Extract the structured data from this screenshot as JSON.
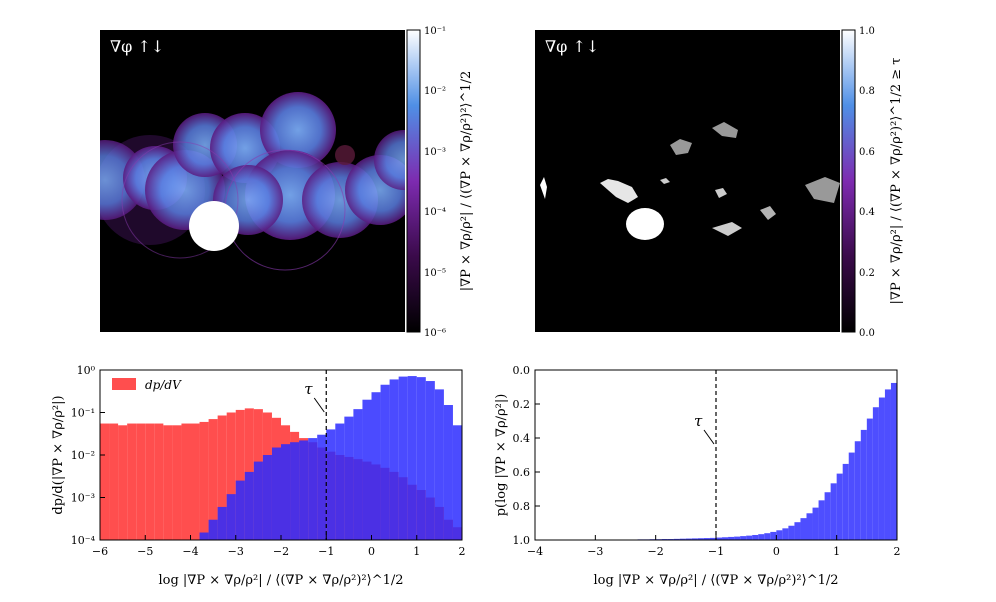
{
  "panels": {
    "top_left": {
      "label": "∇φ ↑↓",
      "colorbar": {
        "ticks": [
          "10⁻¹",
          "10⁻²",
          "10⁻³",
          "10⁻⁴",
          "10⁻⁵",
          "10⁻⁶"
        ],
        "label": "|∇P × ∇ρ/ρ²| / ⟨(∇P × ∇ρ/ρ²)²⟩^1/2"
      }
    },
    "top_right": {
      "label": "∇φ ↑↓",
      "colorbar": {
        "ticks": [
          "1.0",
          "0.8",
          "0.6",
          "0.4",
          "0.2",
          "0.0"
        ],
        "label": "|∇P × ∇ρ/ρ²| / ⟨(∇P × ∇ρ/ρ²)²⟩^1/2 ≥ τ"
      }
    }
  },
  "chart_data": [
    {
      "type": "bar",
      "xlabel": "log |∇P × ∇ρ/ρ²| / ⟨(∇P × ∇ρ/ρ²)²⟩^1/2",
      "ylabel": "dp/d(|∇P × ∇ρ/ρ²|)",
      "yscale": "log",
      "xlim": [
        -6,
        2
      ],
      "ylim": [
        0.0001,
        1
      ],
      "xticks": [
        "−6",
        "−5",
        "−4",
        "−3",
        "−2",
        "−1",
        "0",
        "1",
        "2"
      ],
      "yticks": [
        "10⁰",
        "10⁻¹",
        "10⁻²",
        "10⁻³",
        "10⁻⁴"
      ],
      "legend": {
        "position": "top-left",
        "entries": [
          "dp/dV"
        ]
      },
      "threshold": {
        "label": "τ",
        "x": -1
      },
      "bin_edges_start": -6,
      "bin_width": 0.2,
      "series": [
        {
          "name": "dp/dV",
          "color": "#ff3b3b",
          "values": [
            0.055,
            0.055,
            0.05,
            0.055,
            0.055,
            0.055,
            0.055,
            0.05,
            0.05,
            0.055,
            0.055,
            0.06,
            0.07,
            0.085,
            0.1,
            0.115,
            0.125,
            0.12,
            0.1,
            0.075,
            0.05,
            0.035,
            0.025,
            0.02,
            0.015,
            0.012,
            0.01,
            0.009,
            0.008,
            0.007,
            0.006,
            0.005,
            0.004,
            0.003,
            0.002,
            0.0015,
            0.001,
            0.0006,
            0.0003,
            0.0002
          ]
        },
        {
          "color": "#2b2bff",
          "values": [
            0.0001,
            0.0001,
            0.0001,
            0.0001,
            0.0001,
            0.0001,
            0.0001,
            0.0001,
            0.0001,
            0.0001,
            0.0001,
            0.00015,
            0.0003,
            0.0006,
            0.0012,
            0.0025,
            0.004,
            0.007,
            0.01,
            0.015,
            0.018,
            0.02,
            0.022,
            0.025,
            0.03,
            0.04,
            0.055,
            0.08,
            0.12,
            0.2,
            0.3,
            0.45,
            0.6,
            0.7,
            0.72,
            0.68,
            0.55,
            0.35,
            0.15,
            0.05
          ]
        }
      ]
    },
    {
      "type": "bar",
      "xlabel": "log |∇P × ∇ρ/ρ²| / ⟨(∇P × ∇ρ/ρ²)²⟩^1/2",
      "ylabel": "p(log |∇P × ∇ρ/ρ²|)",
      "xlim": [
        -4,
        2
      ],
      "ylim": [
        0,
        1.05
      ],
      "xticks": [
        "−4",
        "−3",
        "−2",
        "−1",
        "0",
        "1",
        "2"
      ],
      "yticks": [
        "0.0",
        "0.2",
        "0.4",
        "0.6",
        "0.8",
        "1.0"
      ],
      "threshold": {
        "label": "τ",
        "x": -1
      },
      "bin_edges_start": -2.6,
      "bin_width": 0.1,
      "series": [
        {
          "color": "#3b3bff",
          "values": [
            0.002,
            0.003,
            0.003,
            0.004,
            0.004,
            0.005,
            0.005,
            0.006,
            0.006,
            0.007,
            0.008,
            0.009,
            0.01,
            0.011,
            0.012,
            0.013,
            0.015,
            0.017,
            0.019,
            0.021,
            0.024,
            0.027,
            0.031,
            0.036,
            0.042,
            0.05,
            0.06,
            0.072,
            0.088,
            0.11,
            0.135,
            0.165,
            0.2,
            0.245,
            0.295,
            0.35,
            0.41,
            0.47,
            0.54,
            0.61,
            0.68,
            0.75,
            0.82,
            0.88,
            0.93,
            0.97,
            0.99,
            1.0
          ]
        }
      ]
    }
  ]
}
